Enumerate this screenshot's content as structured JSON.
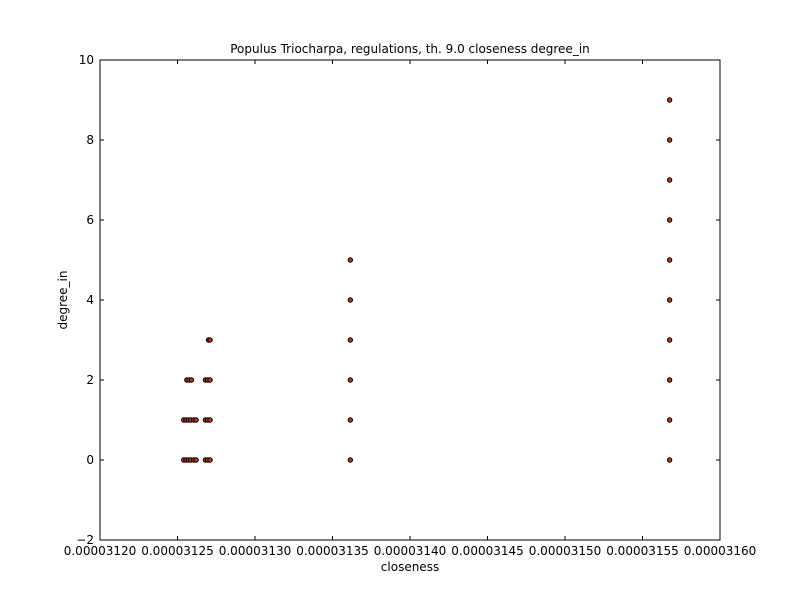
{
  "chart_data": {
    "type": "scatter",
    "title": "Populus Triocharpa, regulations, th. 9.0 closeness degree_in",
    "xlabel": "closeness",
    "ylabel": "degree_in",
    "xlim": [
      3.12e-05,
      3.16e-05
    ],
    "ylim": [
      -2,
      10
    ],
    "x_ticks": [
      3.12e-05,
      3.125e-05,
      3.13e-05,
      3.135e-05,
      3.14e-05,
      3.145e-05,
      3.15e-05,
      3.155e-05,
      3.16e-05
    ],
    "x_tick_labels": [
      "0.00003120",
      "0.00003125",
      "0.00003130",
      "0.00003135",
      "0.00003140",
      "0.00003145",
      "0.00003150",
      "0.00003155",
      "0.00003160"
    ],
    "y_ticks": [
      -2,
      0,
      2,
      4,
      6,
      8,
      10
    ],
    "y_tick_labels": [
      "−2",
      "0",
      "2",
      "4",
      "6",
      "8",
      "10"
    ],
    "grid": false,
    "marker_fill": "#b5351e",
    "marker_edge": "#000000",
    "series": [
      {
        "points": [
          [
            3.1254e-05,
            0
          ],
          [
            3.12555e-05,
            0
          ],
          [
            3.1257e-05,
            0
          ],
          [
            3.12585e-05,
            0
          ],
          [
            3.12605e-05,
            0
          ],
          [
            3.1262e-05,
            0
          ],
          [
            3.1254e-05,
            1
          ],
          [
            3.12555e-05,
            1
          ],
          [
            3.1257e-05,
            1
          ],
          [
            3.12585e-05,
            1
          ],
          [
            3.12605e-05,
            1
          ],
          [
            3.1262e-05,
            1
          ],
          [
            3.1256e-05,
            2
          ],
          [
            3.12575e-05,
            2
          ],
          [
            3.1259e-05,
            2
          ],
          [
            3.1268e-05,
            0
          ],
          [
            3.12695e-05,
            0
          ],
          [
            3.1271e-05,
            0
          ],
          [
            3.1268e-05,
            1
          ],
          [
            3.12695e-05,
            1
          ],
          [
            3.1271e-05,
            1
          ],
          [
            3.1268e-05,
            2
          ],
          [
            3.12695e-05,
            2
          ],
          [
            3.1271e-05,
            2
          ],
          [
            3.127e-05,
            3
          ],
          [
            3.1271e-05,
            3
          ],
          [
            3.13615e-05,
            0
          ],
          [
            3.13615e-05,
            1
          ],
          [
            3.13615e-05,
            2
          ],
          [
            3.13615e-05,
            3
          ],
          [
            3.13615e-05,
            4
          ],
          [
            3.13615e-05,
            5
          ],
          [
            3.15675e-05,
            0
          ],
          [
            3.15675e-05,
            1
          ],
          [
            3.15675e-05,
            2
          ],
          [
            3.15675e-05,
            3
          ],
          [
            3.15675e-05,
            4
          ],
          [
            3.15675e-05,
            5
          ],
          [
            3.15675e-05,
            6
          ],
          [
            3.15675e-05,
            7
          ],
          [
            3.15675e-05,
            8
          ],
          [
            3.15675e-05,
            9
          ]
        ]
      }
    ]
  }
}
